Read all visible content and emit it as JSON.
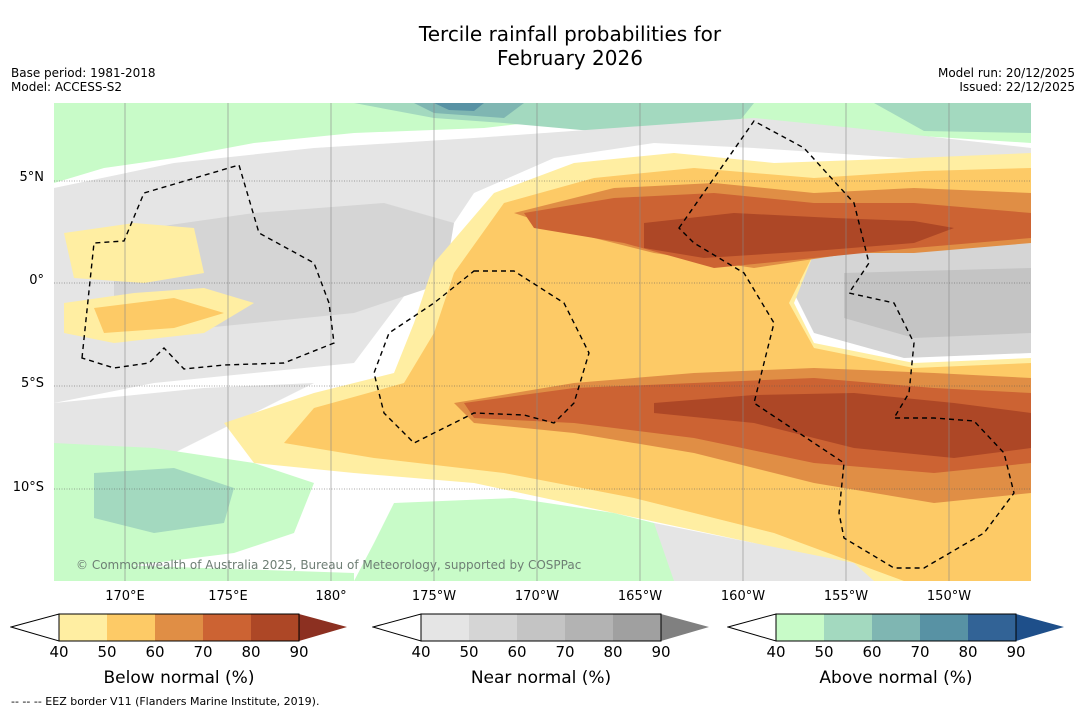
{
  "title_line1": "Tercile rainfall probabilities for",
  "title_line2": "February 2026",
  "meta_left": [
    "Base period: 1981-2018",
    "Model: ACCESS-S2"
  ],
  "meta_right": [
    "Model run: 20/12/2025",
    "Issued: 22/12/2025"
  ],
  "lat_ticks": [
    "5°N",
    "0°",
    "5°S",
    "10°S"
  ],
  "lon_ticks": [
    "170°E",
    "175°E",
    "180°",
    "175°W",
    "170°W",
    "165°W",
    "160°W",
    "155°W",
    "150°W"
  ],
  "copyright": "© Commonwealth of Australia 2025, Bureau of Meteorology, supported by COSPPac",
  "colorbars": [
    {
      "name": "below",
      "title": "Below normal (%)",
      "labels": [
        "40",
        "50",
        "60",
        "70",
        "80",
        "90"
      ],
      "colors": [
        "#ffeea2",
        "#fdca66",
        "#e08e45",
        "#cc6333",
        "#ad4726",
        "#8c3021"
      ]
    },
    {
      "name": "near",
      "title": "Near normal (%)",
      "labels": [
        "40",
        "50",
        "60",
        "70",
        "80",
        "90"
      ],
      "colors": [
        "#e5e5e5",
        "#d5d5d5",
        "#c4c4c4",
        "#b3b3b3",
        "#a0a0a0",
        "#808080"
      ]
    },
    {
      "name": "above",
      "title": "Above normal (%)",
      "labels": [
        "40",
        "50",
        "60",
        "70",
        "80",
        "90"
      ],
      "colors": [
        "#c8fbc8",
        "#a3d9bf",
        "#7fb6b2",
        "#5892a4",
        "#326396",
        "#1e4f8a"
      ]
    }
  ],
  "footer": "--  --  -- EEZ border V11 (Flanders Marine Institute, 2019)."
}
